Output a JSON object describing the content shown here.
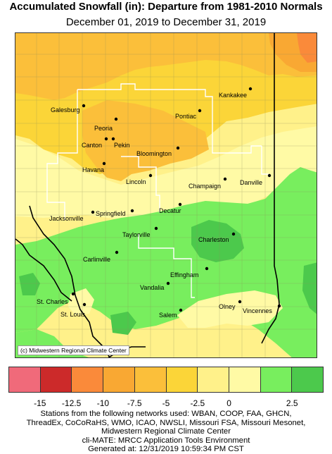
{
  "header": {
    "title": "Accumulated Snowfall (in): Departure from 1981-2010 Normals",
    "subtitle": "December 01, 2019 to December 31, 2019"
  },
  "map": {
    "credit": "(c) Midwestern Regional Climate Center",
    "cities": [
      {
        "name": "Galesburg"
      },
      {
        "name": "Kankakee"
      },
      {
        "name": "Peoria"
      },
      {
        "name": "Pontiac"
      },
      {
        "name": "Canton"
      },
      {
        "name": "Pekin"
      },
      {
        "name": "Bloomington"
      },
      {
        "name": "Havana"
      },
      {
        "name": "Lincoln"
      },
      {
        "name": "Champaign"
      },
      {
        "name": "Danville"
      },
      {
        "name": "Decatur"
      },
      {
        "name": "Jacksonville"
      },
      {
        "name": "Springfield"
      },
      {
        "name": "Taylorville"
      },
      {
        "name": "Charleston"
      },
      {
        "name": "Carlinville"
      },
      {
        "name": "Effingham"
      },
      {
        "name": "Vandalia"
      },
      {
        "name": "St. Charles"
      },
      {
        "name": "Olney"
      },
      {
        "name": "Vincennes"
      },
      {
        "name": "St. Louis"
      },
      {
        "name": "Salem"
      }
    ]
  },
  "legend": {
    "colors": [
      "#f06a7a",
      "#cc2a2a",
      "#fa8a3a",
      "#f9a833",
      "#fbbf3a",
      "#fbd538",
      "#fff18a",
      "#fffaa5",
      "#78ee5e",
      "#4cc94c"
    ],
    "ticks": [
      "-15",
      "-12.5",
      "-10",
      "-7.5",
      "-5",
      "-2.5",
      "0",
      "2.5"
    ]
  },
  "footer": {
    "line1": "Stations from the following networks used: WBAN, COOP, FAA, GHCN,",
    "line2": "ThreadEx, CoCoRaHS, WMO, ICAO, NWSLI, Missouri FSA, Missouri Mesonet,",
    "line3": "Midwestern Regional Climate Center",
    "line4": "cli-MATE: MRCC Application Tools Environment",
    "line5": "Generated at: 12/31/2019 10:59:34 PM CST"
  }
}
